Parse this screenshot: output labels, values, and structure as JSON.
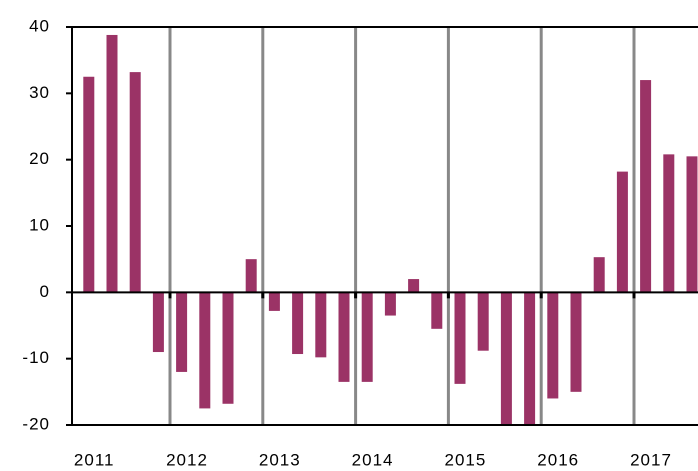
{
  "chart_data": {
    "type": "bar",
    "categories": [
      "2011",
      null,
      null,
      null,
      "2012",
      null,
      null,
      null,
      "2013",
      null,
      null,
      null,
      "2014",
      null,
      null,
      null,
      "2015",
      null,
      null,
      null,
      "2016",
      null,
      null,
      null,
      "2017",
      null,
      null
    ],
    "values": [
      32.5,
      38.8,
      33.2,
      -9,
      -12,
      -17.5,
      -16.8,
      5,
      -2.8,
      -9.3,
      -9.8,
      -13.5,
      -13.5,
      -3.5,
      2,
      -5.5,
      -13.8,
      -8.8,
      -20,
      -20,
      -16,
      -15,
      5.3,
      18.2,
      32,
      20.8,
      20.5
    ],
    "color": "#9b3366",
    "ylim": [
      -20,
      40
    ],
    "yticks": [
      -20,
      -10,
      0,
      10,
      20,
      30,
      40
    ],
    "grid": true
  }
}
